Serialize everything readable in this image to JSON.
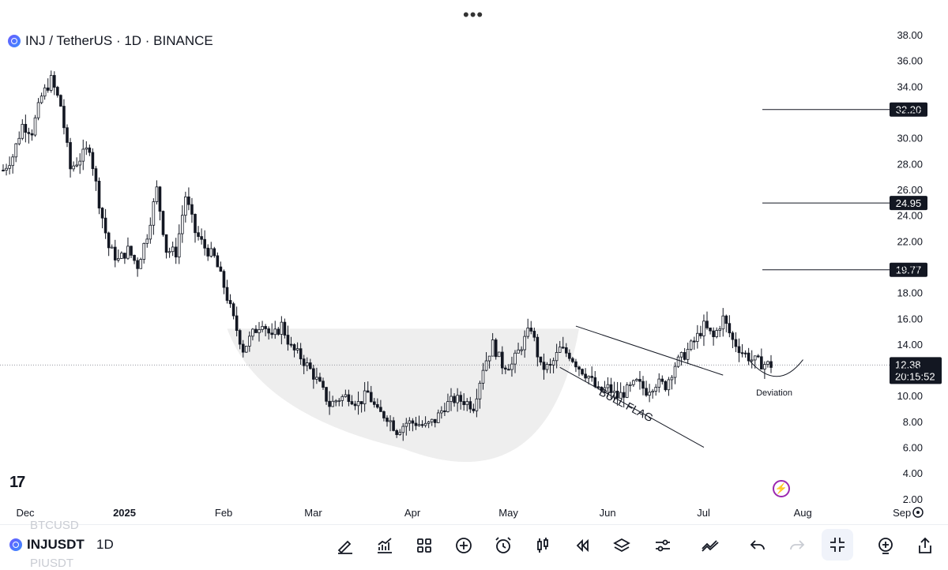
{
  "header": {
    "more_icon": "more-horizontal-icon",
    "more_label": "•••"
  },
  "legend": {
    "coin_icon": "inj-coin-icon",
    "title": "INJ / TetherUS · 1D · BINANCE"
  },
  "chart_data": {
    "type": "candlestick",
    "symbol": "INJ / TetherUS",
    "interval": "1D",
    "exchange": "BINANCE",
    "y_ticks": [
      "38.00",
      "36.00",
      "34.00",
      "32.00",
      "30.00",
      "28.00",
      "26.00",
      "24.00",
      "22.00",
      "20.00",
      "18.00",
      "16.00",
      "14.00",
      "12.00",
      "10.00",
      "8.00",
      "6.00",
      "4.00",
      "2.00"
    ],
    "ylim": [
      2,
      38
    ],
    "x_ticks": [
      "Dec",
      "2025",
      "Feb",
      "Mar",
      "Apr",
      "May",
      "Jun",
      "Jul",
      "Aug",
      "Sep"
    ],
    "x_tick_days": [
      0,
      31,
      62,
      90,
      121,
      151,
      182,
      212,
      243,
      274
    ],
    "last_day": 244,
    "price_levels": [
      {
        "label": "32.20",
        "value": 32.2
      },
      {
        "label": "24.95",
        "value": 24.95
      },
      {
        "label": "19.77",
        "value": 19.77
      }
    ],
    "current_price": {
      "label": "12.38",
      "value": 12.38,
      "countdown": "20:15:52"
    },
    "annotations": [
      {
        "text": "BULL FLAG"
      },
      {
        "text": "Deviation"
      }
    ],
    "close_path": [
      [
        0,
        27.5
      ],
      [
        3,
        28.6
      ],
      [
        6,
        31
      ],
      [
        9,
        30.5
      ],
      [
        12,
        33.2
      ],
      [
        15,
        34.5
      ],
      [
        18,
        32.5
      ],
      [
        21,
        27.6
      ],
      [
        24,
        28.4
      ],
      [
        27,
        29.3
      ],
      [
        30,
        25
      ],
      [
        33,
        21.5
      ],
      [
        36,
        20.5
      ],
      [
        39,
        21.3
      ],
      [
        42,
        20.1
      ],
      [
        45,
        22.5
      ],
      [
        48,
        26
      ],
      [
        51,
        21.3
      ],
      [
        54,
        21.1
      ],
      [
        57,
        25.5
      ],
      [
        60,
        22.7
      ],
      [
        63,
        21.5
      ],
      [
        66,
        20.7
      ],
      [
        69,
        18.5
      ],
      [
        72,
        15.9
      ],
      [
        75,
        13.6
      ],
      [
        78,
        14.8
      ],
      [
        81,
        15.8
      ],
      [
        84,
        14.4
      ],
      [
        87,
        15.5
      ],
      [
        90,
        13.7
      ],
      [
        93,
        13
      ],
      [
        96,
        12
      ],
      [
        99,
        10.8
      ],
      [
        102,
        9.3
      ],
      [
        105,
        9.8
      ],
      [
        108,
        10
      ],
      [
        111,
        9.4
      ],
      [
        114,
        10.2
      ],
      [
        117,
        8.7
      ],
      [
        120,
        8.4
      ],
      [
        123,
        7.3
      ],
      [
        126,
        7.9
      ],
      [
        129,
        7.9
      ],
      [
        132,
        7.6
      ],
      [
        135,
        8.1
      ],
      [
        138,
        9.2
      ],
      [
        141,
        9.7
      ],
      [
        144,
        9.6
      ],
      [
        147,
        9.2
      ],
      [
        150,
        12.2
      ],
      [
        153,
        14
      ],
      [
        156,
        12.4
      ],
      [
        159,
        12.4
      ],
      [
        162,
        13.9
      ],
      [
        165,
        15.3
      ],
      [
        168,
        12.2
      ],
      [
        171,
        12.2
      ],
      [
        174,
        13.6
      ],
      [
        177,
        13.2
      ],
      [
        180,
        12.2
      ],
      [
        183,
        11.5
      ],
      [
        186,
        10.3
      ],
      [
        189,
        10.6
      ],
      [
        192,
        9.9
      ],
      [
        195,
        10.4
      ],
      [
        198,
        11
      ],
      [
        201,
        10.4
      ],
      [
        204,
        11
      ],
      [
        207,
        10.8
      ],
      [
        210,
        12.4
      ],
      [
        213,
        13.2
      ],
      [
        216,
        14.2
      ],
      [
        219,
        15.4
      ],
      [
        222,
        14.5
      ],
      [
        225,
        16
      ],
      [
        228,
        14.3
      ],
      [
        231,
        13.4
      ],
      [
        234,
        12.8
      ],
      [
        237,
        12.5
      ],
      [
        240,
        12.38
      ]
    ]
  },
  "watermark": {
    "logo_text": "17",
    "flash_icon": "flash-icon",
    "flash_glyph": "⚡"
  },
  "bottom_bar": {
    "ghost_symbols": [
      "BTCUSD",
      "PIUSDT"
    ],
    "symbol": "INJUSDT",
    "interval": "1D",
    "tools": [
      "brush-icon",
      "indicators-icon",
      "layout-grid-icon",
      "add-circle-icon",
      "alarm-icon",
      "candles-icon",
      "replay-icon",
      "layers-icon",
      "settings-sliders-icon",
      "compare-icon",
      "undo-icon",
      "redo-icon",
      "fullscreen-exit-icon",
      "add-alert-icon",
      "share-icon"
    ]
  }
}
